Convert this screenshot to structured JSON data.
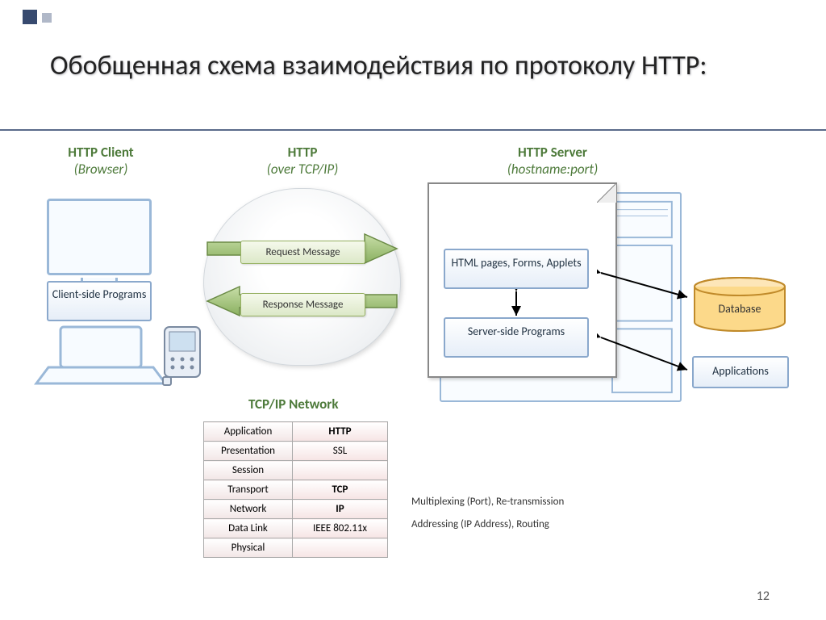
{
  "title": "Обобщенная схема взаимодействия по протоколу HTTP:",
  "page_number": "12",
  "colors": {
    "heading_green": "#4d7a3a",
    "box_border": "#8aa8cc",
    "arrow_green": "#a8c884",
    "arrow_green_dark": "#7ba050",
    "table_red_bg": "#f4e2e2",
    "db_orange": "#f2b84c"
  },
  "columns": {
    "client": {
      "title": "HTTP Client",
      "sub": "(Browser)"
    },
    "http": {
      "title": "HTTP",
      "sub": "(over TCP/IP)"
    },
    "server": {
      "title": "HTTP Server",
      "sub": "(hostname:port)"
    }
  },
  "client_box": "Client-side Programs",
  "request_label": "Request Message",
  "response_label": "Response Message",
  "tcpip_label": "TCP/IP Network",
  "server_html_box": "HTML pages, Forms, Applets",
  "server_programs_box": "Server-side Programs",
  "database_label": "Database",
  "applications_label": "Applications",
  "stack": {
    "layers": [
      "Application",
      "Presentation",
      "Session",
      "Transport",
      "Network",
      "Data Link",
      "Physical"
    ],
    "protocols": [
      "HTTP",
      "SSL",
      "",
      "TCP",
      "IP",
      "IEEE 802.11x",
      ""
    ],
    "bold": [
      true,
      false,
      false,
      true,
      true,
      false,
      false
    ],
    "annotations": {
      "transport": "Multiplexing (Port), Re-transmission",
      "network": "Addressing (IP Address), Routing"
    }
  }
}
